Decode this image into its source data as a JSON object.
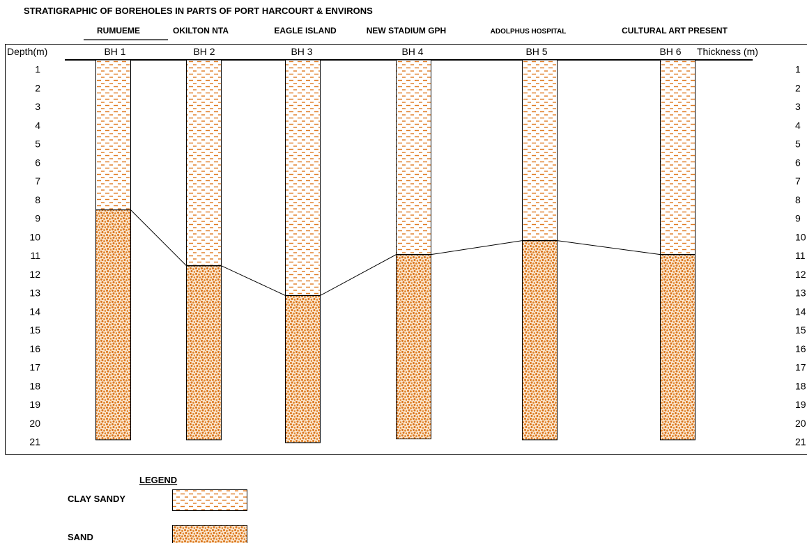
{
  "title": "STRATIGRAPHIC  OF BOREHOLES IN PARTS OF PORT HARCOURT &  ENVIRONS",
  "header": {
    "depth_label": "Depth(m)",
    "thickness_label": "Thickness (m)"
  },
  "depth_ticks": [
    "1",
    "2",
    "3",
    "4",
    "5",
    "6",
    "7",
    "8",
    "9",
    "10",
    "11",
    "12",
    "13",
    "14",
    "15",
    "16",
    "17",
    "18",
    "19",
    "20",
    "21"
  ],
  "thickness_ticks": [
    "1",
    "2",
    "3",
    "4",
    "5",
    "6",
    "7",
    "8",
    "9",
    "10",
    "11",
    "12",
    "13",
    "14",
    "15",
    "16",
    "17",
    "18",
    "19",
    "20",
    "21"
  ],
  "boreholes": [
    {
      "id": "BH 1",
      "location": "RUMUEME",
      "clay_bottom_depth": 8.55,
      "bottom_depth": 20.9
    },
    {
      "id": "BH 2",
      "location": "OKILTON NTA",
      "clay_bottom_depth": 11.55,
      "bottom_depth": 20.9
    },
    {
      "id": "BH 3",
      "location": "EAGLE ISLAND",
      "clay_bottom_depth": 13.15,
      "bottom_depth": 21.05
    },
    {
      "id": "BH 4",
      "location": "NEW STADIUM GPH",
      "clay_bottom_depth": 10.95,
      "bottom_depth": 20.85
    },
    {
      "id": "BH 5",
      "location": "ADOLPHUS  HOSPITAL",
      "clay_bottom_depth": 10.2,
      "bottom_depth": 20.9
    },
    {
      "id": "BH 6",
      "location": "CULTURAL ART PRESENT",
      "clay_bottom_depth": 10.95,
      "bottom_depth": 20.9
    }
  ],
  "legend": {
    "title": "LEGEND",
    "items": [
      {
        "label": "CLAY SANDY",
        "pattern": "clay-sandy"
      },
      {
        "label": "SAND",
        "pattern": "sand"
      }
    ]
  },
  "colors": {
    "pattern": "#e07b22",
    "line": "#000000"
  }
}
